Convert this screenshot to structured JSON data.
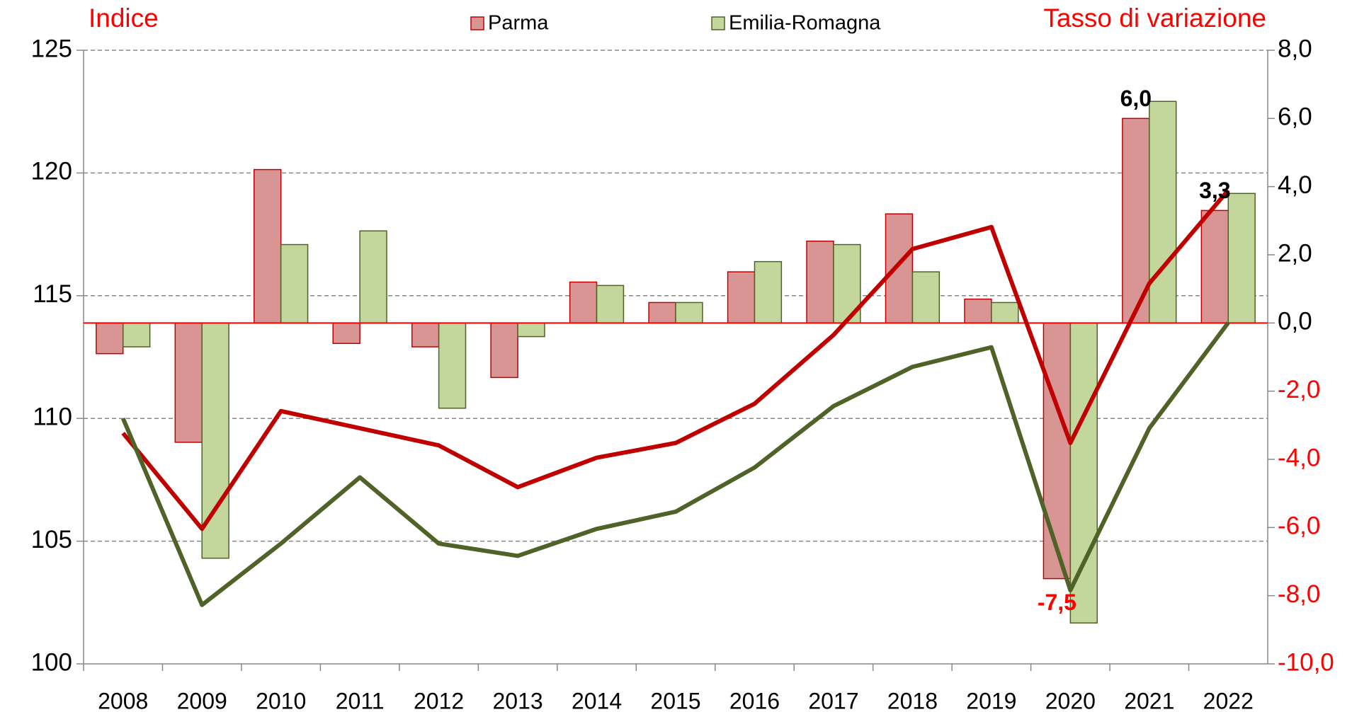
{
  "chart_data": {
    "type": "bar",
    "ylabel": "Indice",
    "y2label": "Tasso di variazione",
    "categories": [
      "2008",
      "2009",
      "2010",
      "2011",
      "2012",
      "2013",
      "2014",
      "2015",
      "2016",
      "2017",
      "2018",
      "2019",
      "2020",
      "2021",
      "2022"
    ],
    "ylim": [
      100,
      125
    ],
    "yticks": [
      100,
      105,
      110,
      115,
      120,
      125
    ],
    "y2lim": [
      -10,
      8
    ],
    "y2ticks": [
      {
        "value": -10,
        "label": "-10,0"
      },
      {
        "value": -8,
        "label": "-8,0"
      },
      {
        "value": -6,
        "label": "-6,0"
      },
      {
        "value": -4,
        "label": "-4,0"
      },
      {
        "value": -2,
        "label": "-2,0"
      },
      {
        "value": 0,
        "label": "0,0"
      },
      {
        "value": 2,
        "label": "2,0"
      },
      {
        "value": 4,
        "label": "4,0"
      },
      {
        "value": 6,
        "label": "6,0"
      },
      {
        "value": 8,
        "label": "8,0"
      }
    ],
    "grid": true,
    "legend": "top",
    "series": [
      {
        "name": "Parma",
        "type": "bar",
        "axis": "y2",
        "color": "#d99594",
        "edge": "#c00000",
        "values": [
          -0.9,
          -3.5,
          4.5,
          -0.6,
          -0.7,
          -1.6,
          1.2,
          0.6,
          1.5,
          2.4,
          3.2,
          0.7,
          -7.5,
          6.0,
          3.3
        ],
        "value_labels": [
          null,
          null,
          null,
          null,
          null,
          null,
          null,
          null,
          null,
          null,
          null,
          null,
          "-7,5",
          "6,0",
          "3,3"
        ]
      },
      {
        "name": "Emilia-Romagna",
        "type": "bar",
        "axis": "y2",
        "color": "#c3d69b",
        "edge": "#4f6228",
        "values": [
          -0.7,
          -6.9,
          2.3,
          2.7,
          -2.5,
          -0.4,
          1.1,
          0.6,
          1.8,
          2.3,
          1.5,
          0.6,
          -8.8,
          6.5,
          3.8
        ]
      },
      {
        "type": "line",
        "color": "#c00000",
        "values": [
          109.4,
          105.5,
          110.3,
          109.6,
          108.9,
          107.2,
          108.4,
          109.0,
          110.6,
          113.4,
          116.9,
          117.8,
          109.0,
          115.5,
          119.3
        ]
      },
      {
        "type": "line",
        "color": "#4f6228",
        "values": [
          110.0,
          102.4,
          104.9,
          107.6,
          104.9,
          104.4,
          105.5,
          106.2,
          108.0,
          110.5,
          112.1,
          112.9,
          103.0,
          109.6,
          113.9
        ]
      }
    ]
  }
}
